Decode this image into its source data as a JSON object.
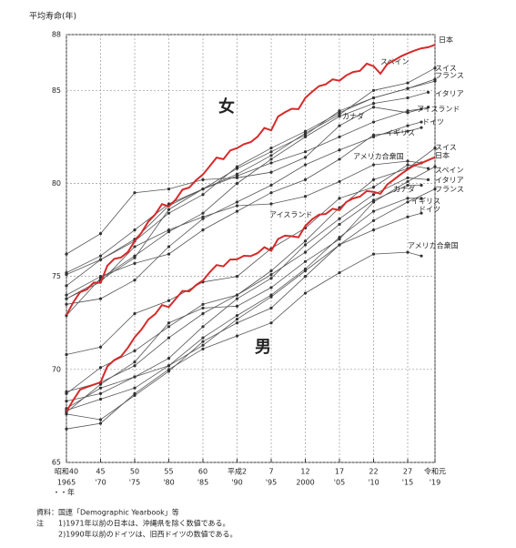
{
  "chart_data": {
    "type": "line",
    "y_label": "平均寿命(年)",
    "x_label": "・・年",
    "annotations": [
      "女",
      "男"
    ],
    "xlim": [
      1965,
      2019
    ],
    "ylim": [
      65,
      88
    ],
    "yticks": [
      65,
      70,
      75,
      80,
      85,
      88
    ],
    "xticks": [
      {
        "value": 1965,
        "label": "昭和40"
      },
      {
        "value": 1970,
        "label": "45"
      },
      {
        "value": 1975,
        "label": "50"
      },
      {
        "value": 1980,
        "label": "55"
      },
      {
        "value": 1985,
        "label": "60"
      },
      {
        "value": 1990,
        "label": "平成2"
      },
      {
        "value": 1995,
        "label": "7"
      },
      {
        "value": 2000,
        "label": "12"
      },
      {
        "value": 2005,
        "label": "17"
      },
      {
        "value": 2010,
        "label": "22"
      },
      {
        "value": 2015,
        "label": "27"
      },
      {
        "value": 2019,
        "label": "令和元"
      }
    ],
    "xticks2": [
      {
        "value": 1965,
        "label": "1965"
      },
      {
        "value": 1970,
        "label": "'70"
      },
      {
        "value": 1975,
        "label": "'75"
      },
      {
        "value": 1980,
        "label": "'80"
      },
      {
        "value": 1985,
        "label": "'85"
      },
      {
        "value": 1990,
        "label": "'90"
      },
      {
        "value": 1995,
        "label": "'95"
      },
      {
        "value": 2000,
        "label": "2000"
      },
      {
        "value": 2005,
        "label": "'05"
      },
      {
        "value": 2010,
        "label": "'10"
      },
      {
        "value": 2015,
        "label": "'15"
      },
      {
        "value": 2019,
        "label": "'19"
      }
    ],
    "grid": true,
    "source": "資料：国連「Demographic Yearbook」等",
    "notes": [
      "注",
      "1)1971年以前の日本は、沖縄県を除く数値である。",
      "2)1990年以前のドイツは、旧西ドイツの数値である。"
    ],
    "series": [
      {
        "name": "日本",
        "color": "#d62a2a",
        "x": [
          1965,
          1966,
          1967,
          1968,
          1969,
          1970,
          1971,
          1972,
          1973,
          1974,
          1975,
          1976,
          1977,
          1978,
          1979,
          1980,
          1981,
          1982,
          1983,
          1984,
          1985,
          1986,
          1987,
          1988,
          1989,
          1990,
          1991,
          1992,
          1993,
          1994,
          1995,
          1996,
          1997,
          1998,
          1999,
          2000,
          2001,
          2002,
          2003,
          2004,
          2005,
          2006,
          2007,
          2008,
          2009,
          2010,
          2011,
          2012,
          2013,
          2014,
          2015,
          2016,
          2017,
          2018,
          2019
        ],
        "values": [
          72.92,
          73.61,
          74.15,
          74.3,
          74.67,
          74.66,
          75.58,
          75.94,
          76.02,
          76.31,
          76.89,
          77.35,
          77.95,
          78.33,
          78.89,
          78.76,
          79.13,
          79.66,
          79.78,
          80.18,
          80.48,
          80.93,
          81.39,
          81.3,
          81.77,
          81.9,
          82.11,
          82.22,
          82.51,
          82.98,
          82.85,
          83.59,
          83.82,
          84.01,
          83.99,
          84.6,
          84.93,
          85.23,
          85.33,
          85.59,
          85.52,
          85.81,
          85.99,
          86.05,
          86.44,
          86.3,
          85.9,
          86.41,
          86.61,
          86.83,
          86.99,
          87.14,
          87.26,
          87.32,
          87.45
        ]
      },
      {
        "name": "スペイン",
        "color": "#555555",
        "x": [
          1965,
          1970,
          1975,
          1980,
          1985,
          1990,
          1995,
          2000,
          2005,
          2010,
          2015,
          2019
        ],
        "values": [
          73.8,
          74.8,
          76.0,
          78.6,
          79.7,
          80.5,
          81.5,
          82.7,
          83.7,
          85.0,
          85.4,
          86.2
        ]
      },
      {
        "name": "スイス",
        "color": "#555555",
        "x": [
          1965,
          1970,
          1975,
          1980,
          1985,
          1990,
          1995,
          2000,
          2005,
          2010,
          2015,
          2019
        ],
        "values": [
          74.5,
          75.9,
          77.0,
          78.8,
          79.7,
          80.8,
          81.7,
          82.6,
          83.9,
          84.6,
          85.1,
          85.6
        ]
      },
      {
        "name": "フランス",
        "color": "#555555",
        "x": [
          1965,
          1970,
          1975,
          1980,
          1985,
          1990,
          1995,
          2000,
          2005,
          2010,
          2015,
          2019
        ],
        "values": [
          75.1,
          75.9,
          76.9,
          78.4,
          79.4,
          80.9,
          81.9,
          82.8,
          83.8,
          84.6,
          85.1,
          85.5
        ]
      },
      {
        "name": "イタリア",
        "color": "#555555",
        "x": [
          1965,
          1970,
          1975,
          1980,
          1985,
          1990,
          1995,
          2000,
          2005,
          2010,
          2015,
          2018
        ],
        "values": [
          72.9,
          74.9,
          76.1,
          77.4,
          78.4,
          80.0,
          81.3,
          82.5,
          83.6,
          84.3,
          84.6,
          84.9
        ]
      },
      {
        "name": "アイスランド",
        "color": "#555555",
        "x": [
          1965,
          1970,
          1975,
          1980,
          1985,
          1990,
          1995,
          2000,
          2005,
          2010,
          2015,
          2018
        ],
        "values": [
          76.2,
          77.3,
          79.5,
          79.7,
          80.2,
          80.3,
          80.6,
          81.4,
          83.1,
          84.1,
          83.8,
          84.1
        ]
      },
      {
        "name": "カナダ",
        "color": "#555555",
        "x": [
          1965,
          1970,
          1975,
          1980,
          1985,
          1990,
          1995,
          2000,
          2005,
          2010,
          2015,
          2017
        ],
        "values": [
          75.2,
          76.1,
          77.5,
          78.9,
          79.7,
          80.4,
          81.1,
          81.7,
          82.5,
          83.3,
          83.9,
          84.0
        ]
      },
      {
        "name": "ドイツ",
        "color": "#555555",
        "x": [
          1965,
          1970,
          1975,
          1980,
          1985,
          1990,
          1995,
          2000,
          2005,
          2010,
          2015,
          2017
        ],
        "values": [
          73.5,
          73.8,
          74.8,
          76.6,
          78.1,
          79.0,
          79.9,
          81.0,
          81.8,
          82.5,
          83.1,
          83.3
        ]
      },
      {
        "name": "イギリス",
        "color": "#555555",
        "x": [
          1965,
          1970,
          1975,
          1980,
          1985,
          1990,
          1995,
          2000,
          2005,
          2010,
          2015,
          2017
        ],
        "values": [
          74.0,
          75.0,
          75.7,
          76.2,
          77.5,
          78.5,
          79.5,
          80.2,
          81.3,
          82.6,
          82.8,
          83.0
        ]
      },
      {
        "name": "アメリカ合衆国",
        "color": "#555555",
        "x": [
          1965,
          1970,
          1975,
          1980,
          1985,
          1990,
          1995,
          2000,
          2005,
          2010,
          2015,
          2017
        ],
        "values": [
          73.8,
          74.7,
          76.6,
          77.5,
          78.2,
          78.8,
          78.9,
          79.3,
          80.1,
          81.0,
          81.2,
          81.1
        ]
      },
      {
        "name": "日本",
        "color": "#d62a2a",
        "x": [
          1965,
          1966,
          1967,
          1968,
          1969,
          1970,
          1971,
          1972,
          1973,
          1974,
          1975,
          1976,
          1977,
          1978,
          1979,
          1980,
          1981,
          1982,
          1983,
          1984,
          1985,
          1986,
          1987,
          1988,
          1989,
          1990,
          1991,
          1992,
          1993,
          1994,
          1995,
          1996,
          1997,
          1998,
          1999,
          2000,
          2001,
          2002,
          2003,
          2004,
          2005,
          2006,
          2007,
          2008,
          2009,
          2010,
          2011,
          2012,
          2013,
          2014,
          2015,
          2016,
          2017,
          2018,
          2019
        ],
        "values": [
          67.74,
          68.35,
          68.91,
          69.05,
          69.18,
          69.31,
          70.17,
          70.5,
          70.7,
          71.16,
          71.73,
          72.15,
          72.69,
          72.97,
          73.46,
          73.35,
          73.79,
          74.22,
          74.2,
          74.54,
          74.78,
          75.23,
          75.61,
          75.54,
          75.91,
          75.92,
          76.11,
          76.09,
          76.25,
          76.57,
          76.38,
          77.01,
          77.19,
          77.16,
          77.1,
          77.72,
          78.07,
          78.32,
          78.36,
          78.64,
          78.56,
          79.0,
          79.19,
          79.29,
          79.59,
          79.55,
          79.44,
          79.94,
          80.21,
          80.5,
          80.75,
          80.98,
          81.09,
          81.25,
          81.41
        ]
      },
      {
        "name": "スペイン",
        "color": "#555555",
        "x": [
          1965,
          1970,
          1975,
          1980,
          1985,
          1990,
          1995,
          2000,
          2005,
          2010,
          2015,
          2019
        ],
        "values": [
          67.7,
          69.2,
          70.4,
          72.5,
          73.3,
          73.4,
          74.4,
          75.8,
          77.0,
          79.0,
          80.1,
          80.9
        ]
      },
      {
        "name": "スイス",
        "color": "#555555",
        "x": [
          1965,
          1970,
          1975,
          1980,
          1985,
          1990,
          1995,
          2000,
          2005,
          2010,
          2015,
          2019
        ],
        "values": [
          68.7,
          70.1,
          71.0,
          72.3,
          73.5,
          74.0,
          75.3,
          76.9,
          78.7,
          80.2,
          80.8,
          81.9
        ]
      },
      {
        "name": "フランス",
        "color": "#555555",
        "x": [
          1965,
          1970,
          1975,
          1980,
          1985,
          1990,
          1995,
          2000,
          2005,
          2010,
          2015,
          2019
        ],
        "values": [
          67.8,
          68.4,
          69.0,
          70.2,
          71.3,
          72.7,
          73.9,
          75.3,
          76.7,
          78.0,
          79.0,
          79.7
        ]
      },
      {
        "name": "イタリア",
        "color": "#555555",
        "x": [
          1965,
          1970,
          1975,
          1980,
          1985,
          1990,
          1995,
          2000,
          2005,
          2010,
          2015,
          2018
        ],
        "values": [
          67.9,
          69.0,
          69.6,
          70.6,
          72.3,
          73.8,
          74.9,
          76.7,
          78.1,
          79.4,
          80.3,
          80.2
        ]
      },
      {
        "name": "アイスランド",
        "color": "#555555",
        "x": [
          1965,
          1970,
          1975,
          1980,
          1985,
          1990,
          1995,
          2000,
          2005,
          2010,
          2015,
          2018
        ],
        "values": [
          70.8,
          71.2,
          73.0,
          73.7,
          74.7,
          75.0,
          76.5,
          77.6,
          79.2,
          79.8,
          81.0,
          80.8
        ]
      },
      {
        "name": "カナダ",
        "color": "#555555",
        "x": [
          1965,
          1970,
          1975,
          1980,
          1985,
          1990,
          1995,
          2000,
          2005,
          2010,
          2015,
          2017
        ],
        "values": [
          68.8,
          69.3,
          70.2,
          71.7,
          73.0,
          74.0,
          75.1,
          76.3,
          77.8,
          79.1,
          79.9,
          79.9
        ]
      },
      {
        "name": "ドイツ",
        "color": "#555555",
        "x": [
          1965,
          1970,
          1975,
          1980,
          1985,
          1990,
          1995,
          2000,
          2005,
          2010,
          2015,
          2017
        ],
        "values": [
          67.6,
          67.3,
          68.6,
          69.9,
          71.5,
          72.5,
          73.3,
          75.0,
          76.7,
          77.5,
          78.2,
          78.4
        ]
      },
      {
        "name": "イギリス",
        "color": "#555555",
        "x": [
          1965,
          1970,
          1975,
          1980,
          1985,
          1990,
          1995,
          2000,
          2005,
          2010,
          2015,
          2017
        ],
        "values": [
          68.3,
          68.7,
          69.6,
          70.2,
          71.7,
          72.9,
          74.0,
          75.4,
          77.1,
          78.5,
          79.2,
          79.2
        ]
      },
      {
        "name": "アメリカ合衆国",
        "color": "#555555",
        "x": [
          1965,
          1970,
          1975,
          1980,
          1985,
          1990,
          1995,
          2000,
          2005,
          2010,
          2015,
          2017
        ],
        "values": [
          66.8,
          67.1,
          68.7,
          70.0,
          71.1,
          71.8,
          72.5,
          74.1,
          75.2,
          76.2,
          76.3,
          76.1
        ]
      }
    ]
  }
}
